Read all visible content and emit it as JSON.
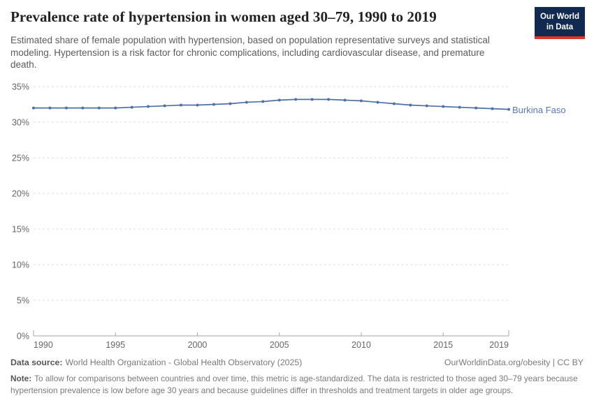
{
  "header": {
    "title": "Prevalence rate of hypertension in women aged 30–79, 1990 to 2019",
    "subtitle": "Estimated share of female population with hypertension, based on population representative surveys and statistical modeling. Hypertension is a risk factor for chronic complications, including cardiovascular disease, and premature death."
  },
  "logo": {
    "line1": "Our World",
    "line2": "in Data"
  },
  "entity_label": "Burkina Faso",
  "colors": {
    "line": "#4e70a6",
    "entity_label": "#5879ad",
    "logo_bg": "#122a4f",
    "logo_stripe": "#dc352a"
  },
  "footer": {
    "source_label": "Data source:",
    "source": "World Health Organization - Global Health Observatory (2025)",
    "rights": "OurWorldinData.org/obesity | CC BY",
    "note_label": "Note:",
    "note": "To allow for comparisons between countries and over time, this metric is age-standardized. The data is restricted to those aged 30–79 years because hypertension prevalence is low before age 30 years and because guidelines differ in thresholds and treatment targets in older age groups."
  },
  "chart_data": {
    "type": "line",
    "title": "Prevalence rate of hypertension in women aged 30–79, 1990 to 2019",
    "xlabel": "",
    "ylabel": "",
    "x": [
      1990,
      1991,
      1992,
      1993,
      1994,
      1995,
      1996,
      1997,
      1998,
      1999,
      2000,
      2001,
      2002,
      2003,
      2004,
      2005,
      2006,
      2007,
      2008,
      2009,
      2010,
      2011,
      2012,
      2013,
      2014,
      2015,
      2016,
      2017,
      2018,
      2019
    ],
    "series": [
      {
        "name": "Burkina Faso",
        "values": [
          32.0,
          32.0,
          32.0,
          32.0,
          32.0,
          32.0,
          32.1,
          32.2,
          32.3,
          32.4,
          32.4,
          32.5,
          32.6,
          32.8,
          32.9,
          33.1,
          33.2,
          33.2,
          33.2,
          33.1,
          33.0,
          32.8,
          32.6,
          32.4,
          32.3,
          32.2,
          32.1,
          32.0,
          31.9,
          31.8
        ]
      }
    ],
    "xticks": [
      1990,
      1995,
      2000,
      2005,
      2010,
      2015,
      2019
    ],
    "yticks": [
      0,
      5,
      10,
      15,
      20,
      25,
      30,
      35
    ],
    "ylim": [
      0,
      35
    ],
    "xlim": [
      1990,
      2019
    ],
    "y_format": "percent",
    "grid": "horizontal-dashed",
    "legend_position": "right-of-line-end",
    "markers": true
  }
}
